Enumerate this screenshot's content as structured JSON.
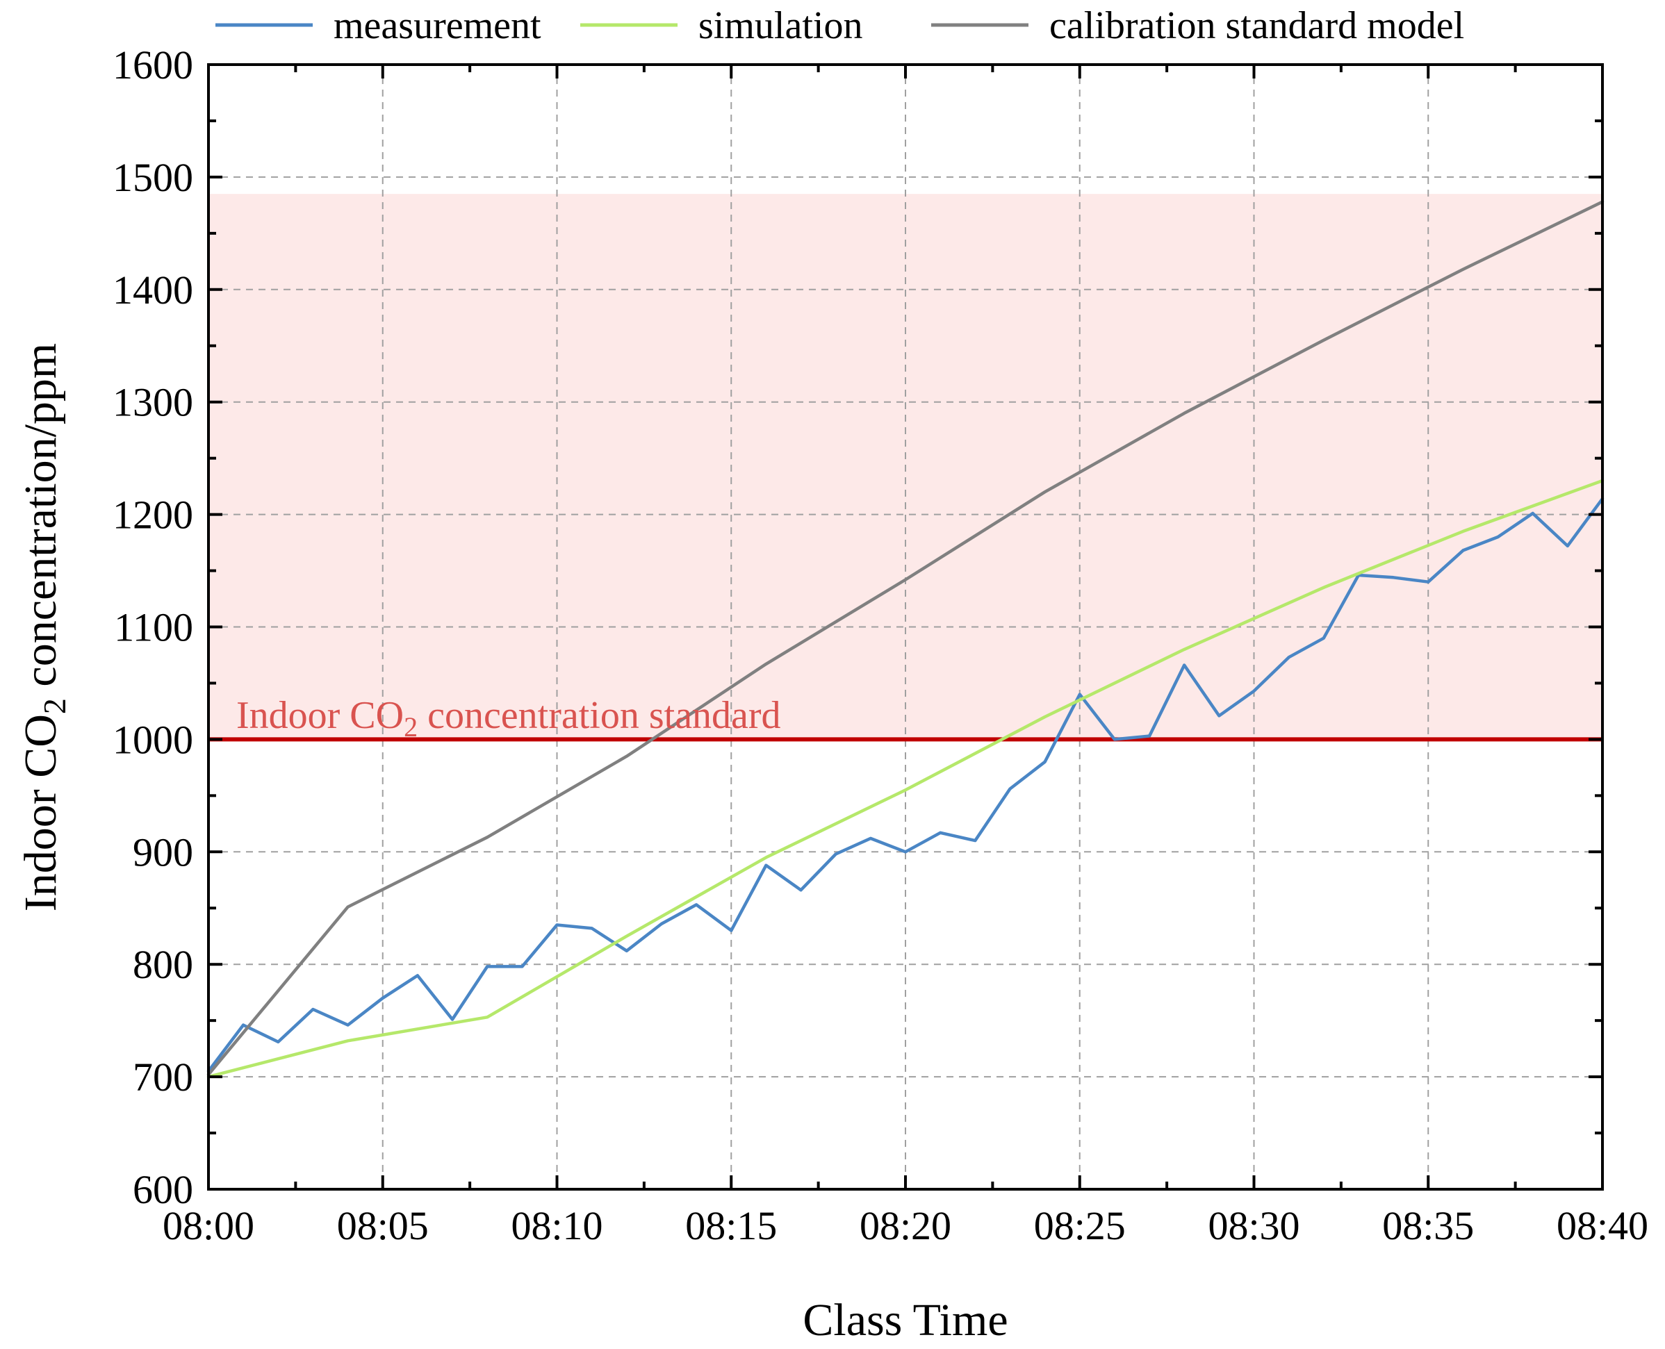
{
  "colors": {
    "measurement": "#4a86c5",
    "simulation": "#b5e86a",
    "calibration": "#808080",
    "standard_line": "#c00000",
    "standard_label": "#d9534f",
    "band_fill": "#fde9e8",
    "grid": "#a0a0a0"
  },
  "chart_data": {
    "type": "line",
    "xlabel": "Class Time",
    "ylabel_parts": {
      "pre": "Indoor CO",
      "sub": "2",
      "post": " concentration/ppm"
    },
    "x_unit": "minutes after 08:00",
    "xlim": [
      0,
      40
    ],
    "ylim": [
      600,
      1600
    ],
    "x_ticks": [
      0,
      5,
      10,
      15,
      20,
      25,
      30,
      35,
      40
    ],
    "x_tick_labels": [
      "08:00",
      "08:05",
      "08:10",
      "08:15",
      "08:20",
      "08:25",
      "08:30",
      "08:35",
      "08:40"
    ],
    "y_ticks": [
      600,
      700,
      800,
      900,
      1000,
      1100,
      1200,
      1300,
      1400,
      1500,
      1600
    ],
    "y_tick_labels": [
      "600",
      "700",
      "800",
      "900",
      "1000",
      "1100",
      "1200",
      "1300",
      "1400",
      "1500",
      "1600"
    ],
    "highlight_tick": "1000",
    "grid": true,
    "legend_position": "top",
    "standard": {
      "value": 1000,
      "label_parts": {
        "pre": "Indoor CO",
        "sub": "2",
        "post": " concentration standard"
      }
    },
    "shaded_band": {
      "from": 1000,
      "to": 1485
    },
    "series": [
      {
        "name": "measurement",
        "x": [
          0,
          1,
          2,
          3,
          4,
          5,
          6,
          7,
          8,
          9,
          10,
          11,
          12,
          13,
          14,
          15,
          16,
          17,
          18,
          19,
          20,
          21,
          22,
          23,
          24,
          25,
          26,
          27,
          28,
          29,
          30,
          31,
          32,
          33,
          34,
          35,
          36,
          37,
          38,
          39,
          40
        ],
        "y": [
          705,
          746,
          731,
          760,
          746,
          770,
          790,
          751,
          798,
          798,
          835,
          832,
          812,
          836,
          853,
          830,
          888,
          866,
          898,
          912,
          900,
          917,
          910,
          956,
          980,
          1040,
          1000,
          1003,
          1066,
          1021,
          1043,
          1073,
          1090,
          1146,
          1144,
          1140,
          1168,
          1180,
          1201,
          1172,
          1214
        ]
      },
      {
        "name": "simulation",
        "x": [
          0,
          4,
          8,
          12,
          16,
          20,
          24,
          28,
          32,
          36,
          40
        ],
        "y": [
          700,
          732,
          753,
          825,
          895,
          955,
          1020,
          1080,
          1135,
          1185,
          1230
        ]
      },
      {
        "name": "calibration standard model",
        "x": [
          0,
          4,
          8,
          12,
          16,
          20,
          24,
          28,
          32,
          36,
          40
        ],
        "y": [
          702,
          851,
          913,
          985,
          1067,
          1142,
          1220,
          1290,
          1355,
          1418,
          1478
        ]
      }
    ]
  }
}
